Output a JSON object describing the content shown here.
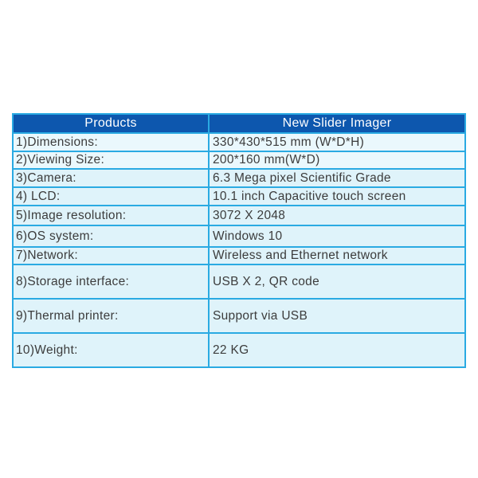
{
  "table": {
    "header": {
      "products_label": "Products",
      "device_label": "New Slider Imager"
    },
    "rows": [
      {
        "label": "1)Dimensions:",
        "value": "330*430*515 mm (W*D*H)"
      },
      {
        "label": "2)Viewing Size:",
        "value": "200*160 mm(W*D)"
      },
      {
        "label": "3)Camera:",
        "value": "6.3 Mega pixel Scientific Grade"
      },
      {
        "label": "4) LCD:",
        "value": "10.1 inch Capacitive touch screen"
      },
      {
        "label": "5)Image resolution:",
        "value": "3072 X 2048"
      },
      {
        "label": "6)OS system:",
        "value": "Windows 10"
      },
      {
        "label": "7)Network:",
        "value": "Wireless and Ethernet network"
      },
      {
        "label": "8)Storage interface:",
        "value": "USB X 2, QR code"
      },
      {
        "label": "9)Thermal printer:",
        "value": "Support via USB"
      },
      {
        "label": "10)Weight:",
        "value": "22 KG"
      }
    ],
    "colors": {
      "header_bg": "#0D57AE",
      "header_text": "#FFFFFF",
      "border": "#2AAAE2",
      "row_light_bg": "#EAF8FD",
      "row_cyan_bg": "#DFF3FA",
      "body_text": "#3C3C3C"
    }
  }
}
